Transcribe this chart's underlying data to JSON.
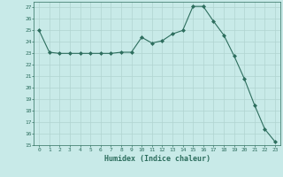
{
  "x": [
    0,
    1,
    2,
    3,
    4,
    5,
    6,
    7,
    8,
    9,
    10,
    11,
    12,
    13,
    14,
    15,
    16,
    17,
    18,
    19,
    20,
    21,
    22,
    23
  ],
  "y": [
    25.0,
    23.1,
    23.0,
    23.0,
    23.0,
    23.0,
    23.0,
    23.0,
    23.1,
    23.1,
    24.4,
    23.9,
    24.1,
    24.7,
    25.0,
    27.1,
    27.1,
    25.8,
    24.6,
    22.8,
    20.8,
    18.5,
    16.4,
    15.3
  ],
  "line_color": "#2d6e5e",
  "marker": "D",
  "marker_size": 2,
  "bg_color": "#c8eae8",
  "grid_color": "#b0d4d0",
  "xlabel": "Humidex (Indice chaleur)",
  "ylim": [
    15,
    27.5
  ],
  "yticks": [
    15,
    16,
    17,
    18,
    19,
    20,
    21,
    22,
    23,
    24,
    25,
    26,
    27
  ],
  "xticks": [
    0,
    1,
    2,
    3,
    4,
    5,
    6,
    7,
    8,
    9,
    10,
    11,
    12,
    13,
    14,
    15,
    16,
    17,
    18,
    19,
    20,
    21,
    22,
    23
  ]
}
